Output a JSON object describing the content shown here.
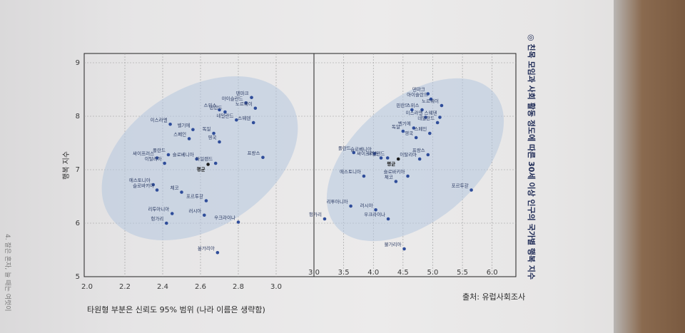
{
  "title": "◎ 친목 모임과 사회 활동 정도에 따른 30세 이상 인구의 국가별 행복 지수",
  "note": "타원형 부분은 신뢰도 95% 범위 (나라 이름은 생략함)",
  "source": "출처: 유럽사회조사",
  "side_text": "4. 잘은 혼자, 늘 때는 여럿이",
  "chart_data": [
    {
      "type": "scatter",
      "panel": "left",
      "xlim": [
        2.0,
        3.2
      ],
      "ylim": [
        5,
        9
      ],
      "x_ticks": [
        "2.0",
        "2.2",
        "2.4",
        "2.6",
        "2.8",
        "3.0"
      ],
      "y_ticks": [
        "5",
        "6",
        "7",
        "8",
        "9"
      ],
      "ylabel": "행복 지수",
      "grid": true,
      "points": [
        {
          "label": "덴마크",
          "x": 2.87,
          "y": 8.35
        },
        {
          "label": "아이슬란드",
          "x": 2.84,
          "y": 8.25
        },
        {
          "label": "스위스",
          "x": 2.7,
          "y": 8.12
        },
        {
          "label": "핀란드",
          "x": 2.73,
          "y": 8.08
        },
        {
          "label": "노르웨이",
          "x": 2.89,
          "y": 8.15
        },
        {
          "label": "네덜란드",
          "x": 2.79,
          "y": 7.93
        },
        {
          "label": "이스라엘",
          "x": 2.44,
          "y": 7.85
        },
        {
          "label": "벨기에",
          "x": 2.56,
          "y": 7.75
        },
        {
          "label": "스웨덴",
          "x": 2.88,
          "y": 7.88
        },
        {
          "label": "독일",
          "x": 2.67,
          "y": 7.68
        },
        {
          "label": "스페인",
          "x": 2.54,
          "y": 7.58
        },
        {
          "label": "영국",
          "x": 2.7,
          "y": 7.52
        },
        {
          "label": "폴란드",
          "x": 2.43,
          "y": 7.28
        },
        {
          "label": "슬로베니아",
          "x": 2.58,
          "y": 7.2
        },
        {
          "label": "싸이프러스",
          "x": 2.37,
          "y": 7.22
        },
        {
          "label": "이탈리아",
          "x": 2.41,
          "y": 7.12
        },
        {
          "label": "아일랜드",
          "x": 2.68,
          "y": 7.12
        },
        {
          "label": "프랑스",
          "x": 2.93,
          "y": 7.23
        },
        {
          "label": "평균",
          "x": 2.64,
          "y": 7.1,
          "bold": true
        },
        {
          "label": "에스토니아",
          "x": 2.35,
          "y": 6.72
        },
        {
          "label": "체코",
          "x": 2.5,
          "y": 6.58
        },
        {
          "label": "슬로바키아",
          "x": 2.37,
          "y": 6.62
        },
        {
          "label": "포르투갈",
          "x": 2.63,
          "y": 6.42
        },
        {
          "label": "리투아니아",
          "x": 2.45,
          "y": 6.18
        },
        {
          "label": "러시아",
          "x": 2.62,
          "y": 6.15
        },
        {
          "label": "헝가리",
          "x": 2.42,
          "y": 6.0
        },
        {
          "label": "우크라이나",
          "x": 2.8,
          "y": 6.02
        },
        {
          "label": "불가리아",
          "x": 2.69,
          "y": 5.45
        }
      ]
    },
    {
      "type": "scatter",
      "panel": "right",
      "xlim": [
        3.0,
        6.4
      ],
      "ylim": [
        5,
        9
      ],
      "x_ticks": [
        "3.0",
        "3.5",
        "4.0",
        "4.5",
        "5.0",
        "5.5",
        "6.0"
      ],
      "grid": true,
      "points": [
        {
          "label": "덴마크",
          "x": 4.92,
          "y": 8.42
        },
        {
          "label": "아이슬란드",
          "x": 4.97,
          "y": 8.32
        },
        {
          "label": "노르웨이",
          "x": 5.15,
          "y": 8.2
        },
        {
          "label": "핀란드",
          "x": 4.65,
          "y": 8.12
        },
        {
          "label": "스위스",
          "x": 4.82,
          "y": 8.12
        },
        {
          "label": "이스라엘",
          "x": 4.88,
          "y": 7.98
        },
        {
          "label": "스웨덴",
          "x": 5.12,
          "y": 7.98
        },
        {
          "label": "네덜란드",
          "x": 5.08,
          "y": 7.88
        },
        {
          "label": "벨기에",
          "x": 4.68,
          "y": 7.78
        },
        {
          "label": "독일",
          "x": 4.5,
          "y": 7.72
        },
        {
          "label": "스페인",
          "x": 4.95,
          "y": 7.68
        },
        {
          "label": "영국",
          "x": 4.72,
          "y": 7.6
        },
        {
          "label": "폴란드",
          "x": 3.67,
          "y": 7.32
        },
        {
          "label": "슬로베니아",
          "x": 4.02,
          "y": 7.3
        },
        {
          "label": "프랑스",
          "x": 4.92,
          "y": 7.28
        },
        {
          "label": "싸이프러스",
          "x": 4.13,
          "y": 7.22
        },
        {
          "label": "아일랜드",
          "x": 4.24,
          "y": 7.22
        },
        {
          "label": "평균",
          "x": 4.42,
          "y": 7.2,
          "bold": true
        },
        {
          "label": "이탈리아",
          "x": 4.78,
          "y": 7.2
        },
        {
          "label": "에스토니아",
          "x": 3.84,
          "y": 6.88
        },
        {
          "label": "슬로바키아",
          "x": 4.58,
          "y": 6.88
        },
        {
          "label": "체코",
          "x": 4.38,
          "y": 6.78
        },
        {
          "label": "포르투갈",
          "x": 5.65,
          "y": 6.62
        },
        {
          "label": "리투아니아",
          "x": 3.62,
          "y": 6.32
        },
        {
          "label": "러시아",
          "x": 4.04,
          "y": 6.25
        },
        {
          "label": "헝가리",
          "x": 3.18,
          "y": 6.08
        },
        {
          "label": "우크라이나",
          "x": 4.25,
          "y": 6.08
        },
        {
          "label": "불가리아",
          "x": 4.52,
          "y": 5.52
        }
      ]
    }
  ]
}
